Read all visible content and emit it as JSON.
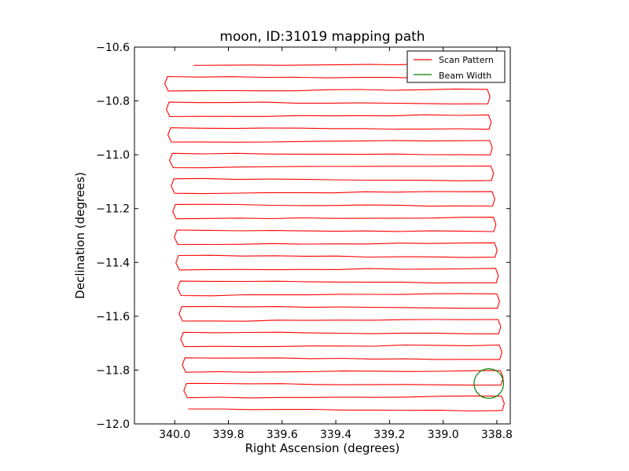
{
  "chart_data": {
    "type": "line",
    "title": "moon, ID:31019 mapping path",
    "xlabel": "Right Ascension (degrees)",
    "ylabel": "Declination (degrees)",
    "xlim": [
      340.15,
      338.75
    ],
    "ylim": [
      -12.0,
      -10.6
    ],
    "x_ticks": [
      "340.0",
      "339.8",
      "339.6",
      "339.4",
      "339.2",
      "339.0",
      "338.8"
    ],
    "x_tick_values": [
      340.0,
      339.8,
      339.6,
      339.4,
      339.2,
      339.0,
      338.8
    ],
    "y_ticks": [
      "−10.6",
      "−10.8",
      "−11.0",
      "−11.2",
      "−11.4",
      "−11.6",
      "−11.8",
      "−12.0"
    ],
    "y_tick_values": [
      -10.6,
      -10.8,
      -11.0,
      -11.2,
      -11.4,
      -11.6,
      -11.8,
      -12.0
    ],
    "grid": false,
    "legend_position": "top-right",
    "series": [
      {
        "name": "Scan Pattern",
        "color": "#ff0000",
        "scan_rows": {
          "count": 28,
          "dec_start": -10.665,
          "dec_step": -0.0475,
          "ra_east": 340.03,
          "ra_east_end": 339.95,
          "ra_west": 338.84,
          "ra_west_end": 338.78,
          "first_row_start_ra": 339.93
        }
      },
      {
        "name": "Beam Width",
        "color": "#008000",
        "circle": {
          "ra_center": 338.83,
          "dec_center": -11.85,
          "radius_deg": 0.055
        }
      }
    ]
  }
}
